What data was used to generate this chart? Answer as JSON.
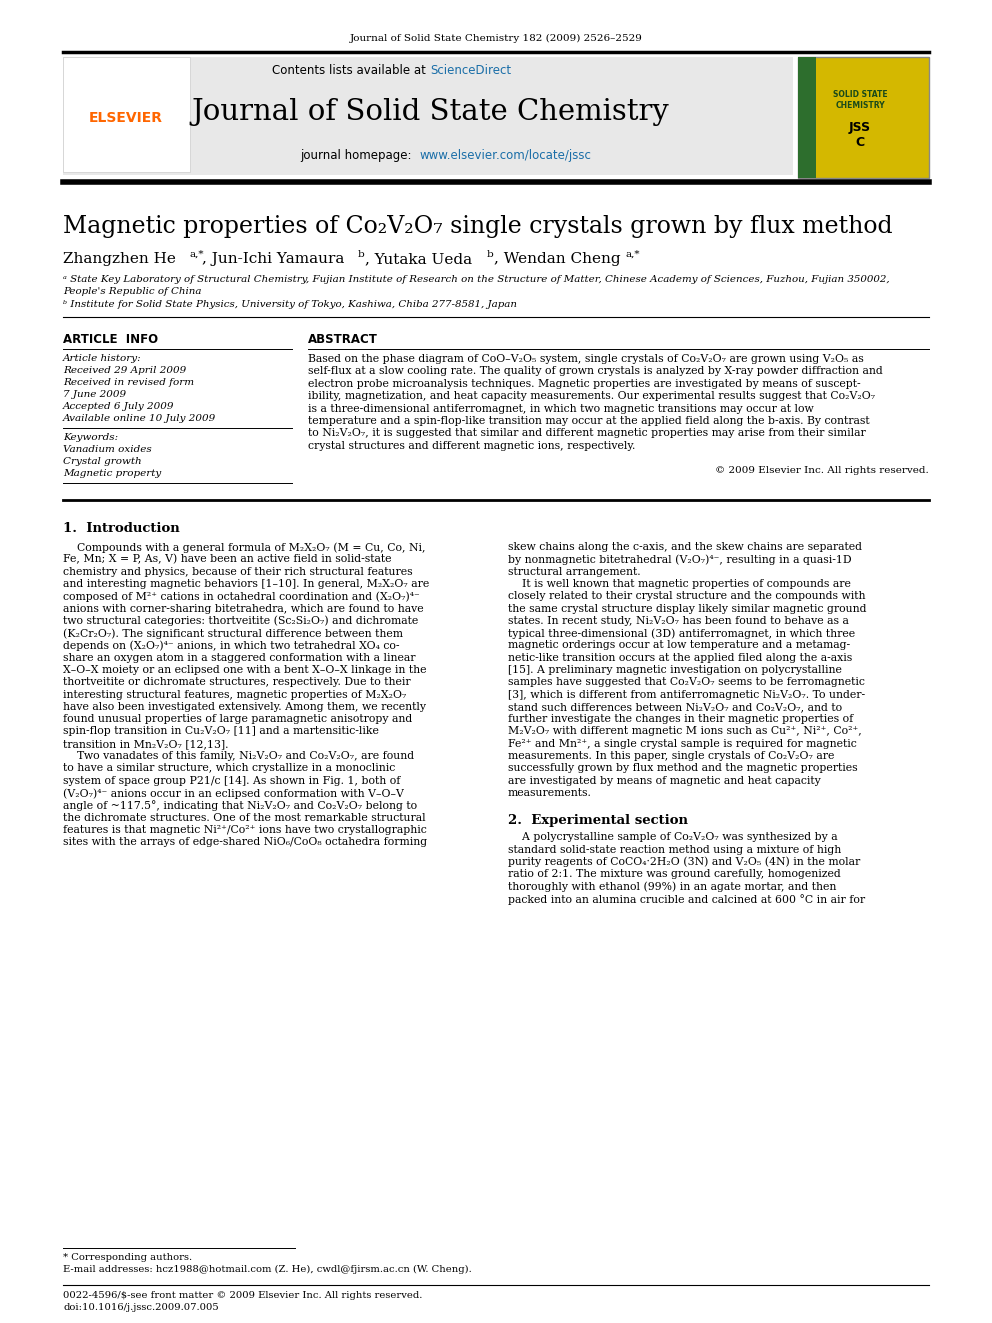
{
  "bg_color": "#ffffff",
  "header_journal_ref": "Journal of Solid State Chemistry 182 (2009) 2526–2529",
  "journal_title": "Journal of Solid State Chemistry",
  "contents_text": "Contents lists available at ScienceDirect",
  "homepage_text": "journal homepage: www.elsevier.com/locate/jssc",
  "paper_title": "Magnetic properties of Co₂V₂O₇ single crystals grown by flux method",
  "article_info_title": "ARTICLE  INFO",
  "article_history_title": "Article history:",
  "article_history": "Received 29 April 2009\nReceived in revised form\n7 June 2009\nAccepted 6 July 2009\nAvailable online 10 July 2009",
  "keywords_title": "Keywords:",
  "keywords": "Vanadium oxides\nCrystal growth\nMagnetic property",
  "abstract_title": "ABSTRACT",
  "abstract_lines": [
    "Based on the phase diagram of CoO–V₂O₅ system, single crystals of Co₂V₂O₇ are grown using V₂O₅ as",
    "self-flux at a slow cooling rate. The quality of grown crystals is analyzed by X-ray powder diffraction and",
    "electron probe microanalysis techniques. Magnetic properties are investigated by means of suscept-",
    "ibility, magnetization, and heat capacity measurements. Our experimental results suggest that Co₂V₂O₇",
    "is a three-dimensional antiferromagnet, in which two magnetic transitions may occur at low",
    "temperature and a spin-flop-like transition may occur at the applied field along the b-axis. By contrast",
    "to Ni₂V₂O₇, it is suggested that similar and different magnetic properties may arise from their similar",
    "crystal structures and different magnetic ions, respectively."
  ],
  "copyright": "© 2009 Elsevier Inc. All rights reserved.",
  "intro_heading": "1.  Introduction",
  "intro_col1_lines": [
    "    Compounds with a general formula of M₂X₂O₇ (M = Cu, Co, Ni,",
    "Fe, Mn; X = P, As, V) have been an active field in solid-state",
    "chemistry and physics, because of their rich structural features",
    "and interesting magnetic behaviors [1–10]. In general, M₂X₂O₇ are",
    "composed of M²⁺ cations in octahedral coordination and (X₂O₇)⁴⁻",
    "anions with corner-sharing bitetrahedra, which are found to have",
    "two structural categories: thortveitite (Sc₂Si₂O₇) and dichromate",
    "(K₂Cr₂O₇). The significant structural difference between them",
    "depends on (X₂O₇)⁴⁻ anions, in which two tetrahedral XO₄ co-",
    "share an oxygen atom in a staggered conformation with a linear",
    "X–O–X moiety or an eclipsed one with a bent X–O–X linkage in the",
    "thortveitite or dichromate structures, respectively. Due to their",
    "interesting structural features, magnetic properties of M₂X₂O₇",
    "have also been investigated extensively. Among them, we recently",
    "found unusual properties of large paramagnetic anisotropy and",
    "spin-flop transition in Cu₂V₂O₇ [11] and a martensitic-like",
    "transition in Mn₂V₂O₇ [12,13].",
    "    Two vanadates of this family, Ni₂V₂O₇ and Co₂V₂O₇, are found",
    "to have a similar structure, which crystallize in a monoclinic",
    "system of space group P21/c [14]. As shown in Fig. 1, both of",
    "(V₂O₇)⁴⁻ anions occur in an eclipsed conformation with V–O–V",
    "angle of ~117.5°, indicating that Ni₂V₂O₇ and Co₂V₂O₇ belong to",
    "the dichromate structures. One of the most remarkable structural",
    "features is that magnetic Ni²⁺/Co²⁺ ions have two crystallographic",
    "sites with the arrays of edge-shared NiO₆/CoO₈ octahedra forming"
  ],
  "intro_col2_lines": [
    "skew chains along the c-axis, and the skew chains are separated",
    "by nonmagnetic bitetrahedral (V₂O₇)⁴⁻, resulting in a quasi-1D",
    "structural arrangement.",
    "    It is well known that magnetic properties of compounds are",
    "closely related to their crystal structure and the compounds with",
    "the same crystal structure display likely similar magnetic ground",
    "states. In recent study, Ni₂V₂O₇ has been found to behave as a",
    "typical three-dimensional (3D) antiferromagnet, in which three",
    "magnetic orderings occur at low temperature and a metamag-",
    "netic-like transition occurs at the applied filed along the a-axis",
    "[15]. A preliminary magnetic investigation on polycrystalline",
    "samples have suggested that Co₂V₂O₇ seems to be ferromagnetic",
    "[3], which is different from antiferromagnetic Ni₂V₂O₇. To under-",
    "stand such differences between Ni₂V₂O₇ and Co₂V₂O₇, and to",
    "further investigate the changes in their magnetic properties of",
    "M₂V₂O₇ with different magnetic M ions such as Cu²⁺, Ni²⁺, Co²⁺,",
    "Fe²⁺ and Mn²⁺, a single crystal sample is required for magnetic",
    "measurements. In this paper, single crystals of Co₂V₂O₇ are",
    "successfully grown by flux method and the magnetic properties",
    "are investigated by means of magnetic and heat capacity",
    "measurements."
  ],
  "section2_heading": "2.  Experimental section",
  "section2_col2_lines": [
    "    A polycrystalline sample of Co₂V₂O₇ was synthesized by a",
    "standard solid-state reaction method using a mixture of high",
    "purity reagents of CoCO₄·2H₂O (3N) and V₂O₅ (4N) in the molar",
    "ratio of 2:1. The mixture was ground carefully, homogenized",
    "thoroughly with ethanol (99%) in an agate mortar, and then",
    "packed into an alumina crucible and calcined at 600 °C in air for"
  ],
  "footnote_star": "* Corresponding authors.",
  "footnote_email": "E-mail addresses: hcz1988@hotmail.com (Z. He), cwdl@fjirsm.ac.cn (W. Cheng).",
  "issn": "0022-4596/$-see front matter © 2009 Elsevier Inc. All rights reserved.",
  "doi": "doi:10.1016/j.jssc.2009.07.005"
}
